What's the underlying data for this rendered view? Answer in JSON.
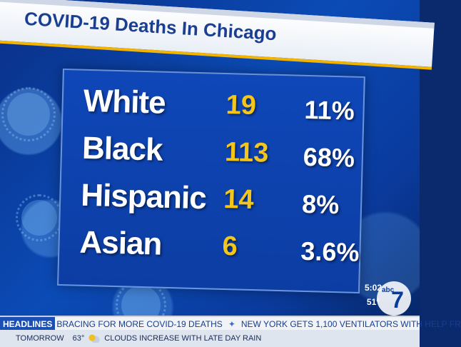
{
  "title": "COVID-19 Deaths In Chicago",
  "rows": [
    {
      "label": "White",
      "count": "19",
      "percent": "11%"
    },
    {
      "label": "Black",
      "count": "113",
      "percent": "68%"
    },
    {
      "label": "Hispanic",
      "count": "14",
      "percent": "8%"
    },
    {
      "label": "Asian",
      "count": "6",
      "percent": "3.6%"
    }
  ],
  "clock": {
    "time": "5:02",
    "temp": "51°"
  },
  "logo": {
    "abc": "abc",
    "seven": "7"
  },
  "ticker": {
    "tag": "HEADLINES",
    "headline1": "BRACING FOR MORE COVID-19 DEATHS",
    "headline2": "NEW YORK GETS 1,100 VENTILATORS WITH HELP FR",
    "tomorrow_label": "TOMORROW",
    "tomorrow_temp": "63°",
    "tomorrow_forecast": "CLOUDS INCREASE WITH LATE DAY RAIN"
  },
  "colors": {
    "number": "#f4c51a",
    "label": "#ffffff",
    "accent": "#1b4fb3"
  }
}
